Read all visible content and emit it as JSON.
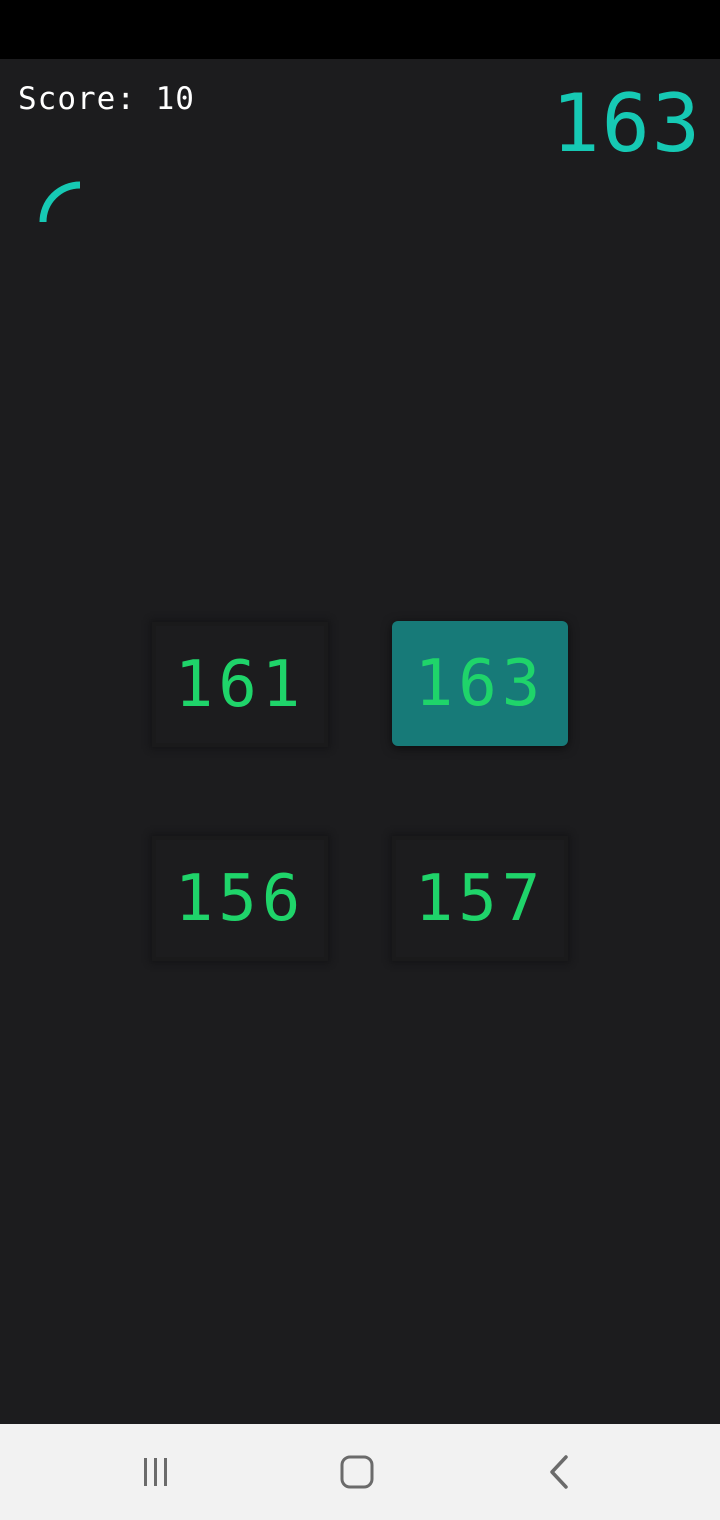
{
  "game": {
    "score_label": "Score: 10",
    "target_number": "163",
    "accent_color": "#16c9b4",
    "answer_color": "#1fd46a",
    "selected_color": "#177a78",
    "options": [
      "161",
      "163",
      "156",
      "157"
    ],
    "selected_option": "163"
  },
  "nav": {
    "icons": [
      "recent-apps-icon",
      "home-icon",
      "back-icon"
    ]
  }
}
